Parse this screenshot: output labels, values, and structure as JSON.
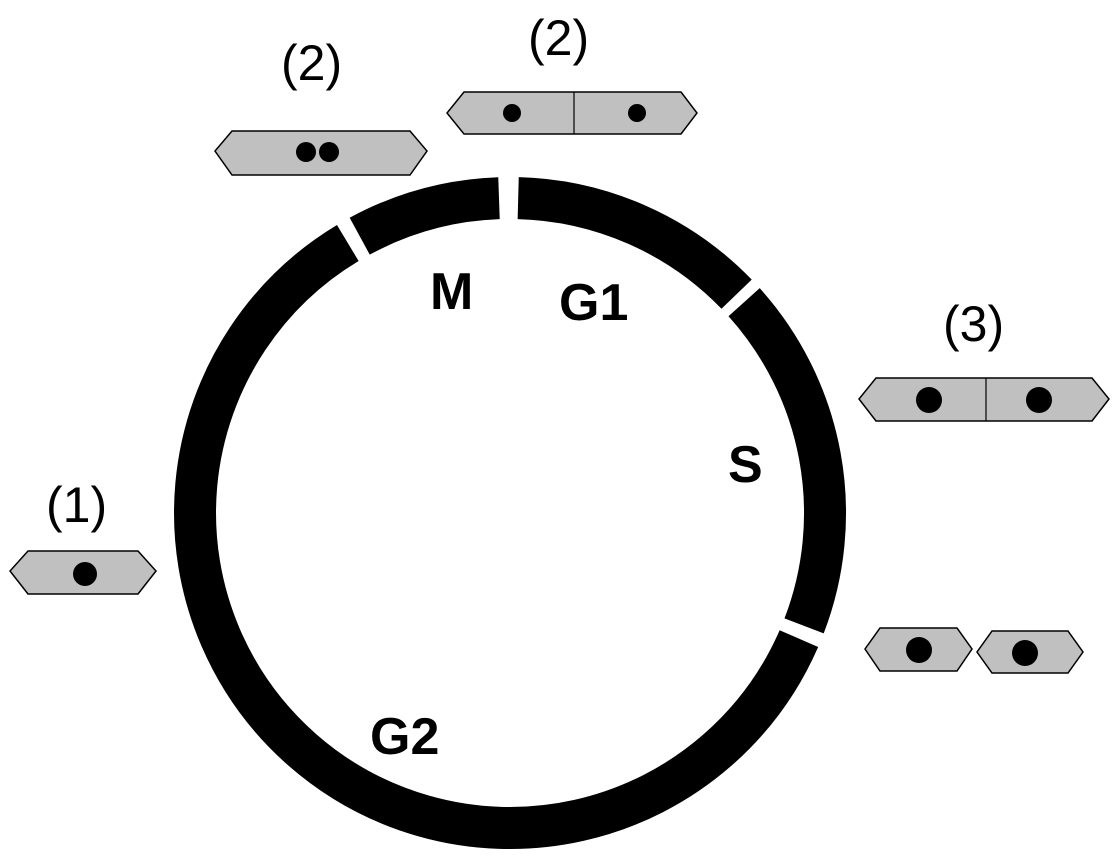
{
  "diagram": {
    "phases": [
      {
        "key": "M",
        "label": "M"
      },
      {
        "key": "G1",
        "label": "G1"
      },
      {
        "key": "S",
        "label": "S"
      },
      {
        "key": "G2",
        "label": "G2"
      }
    ],
    "steps": [
      {
        "key": "step-1",
        "label": "(1)"
      },
      {
        "key": "step-2-left",
        "label": "(2)"
      },
      {
        "key": "step-2-top",
        "label": "(2)"
      },
      {
        "key": "step-3",
        "label": "(3)"
      }
    ],
    "colors": {
      "ring": "#000000",
      "cell_fill": "#c0c0c0",
      "cell_outline": "#000000",
      "nucleus": "#000000",
      "background": "#ffffff"
    }
  }
}
